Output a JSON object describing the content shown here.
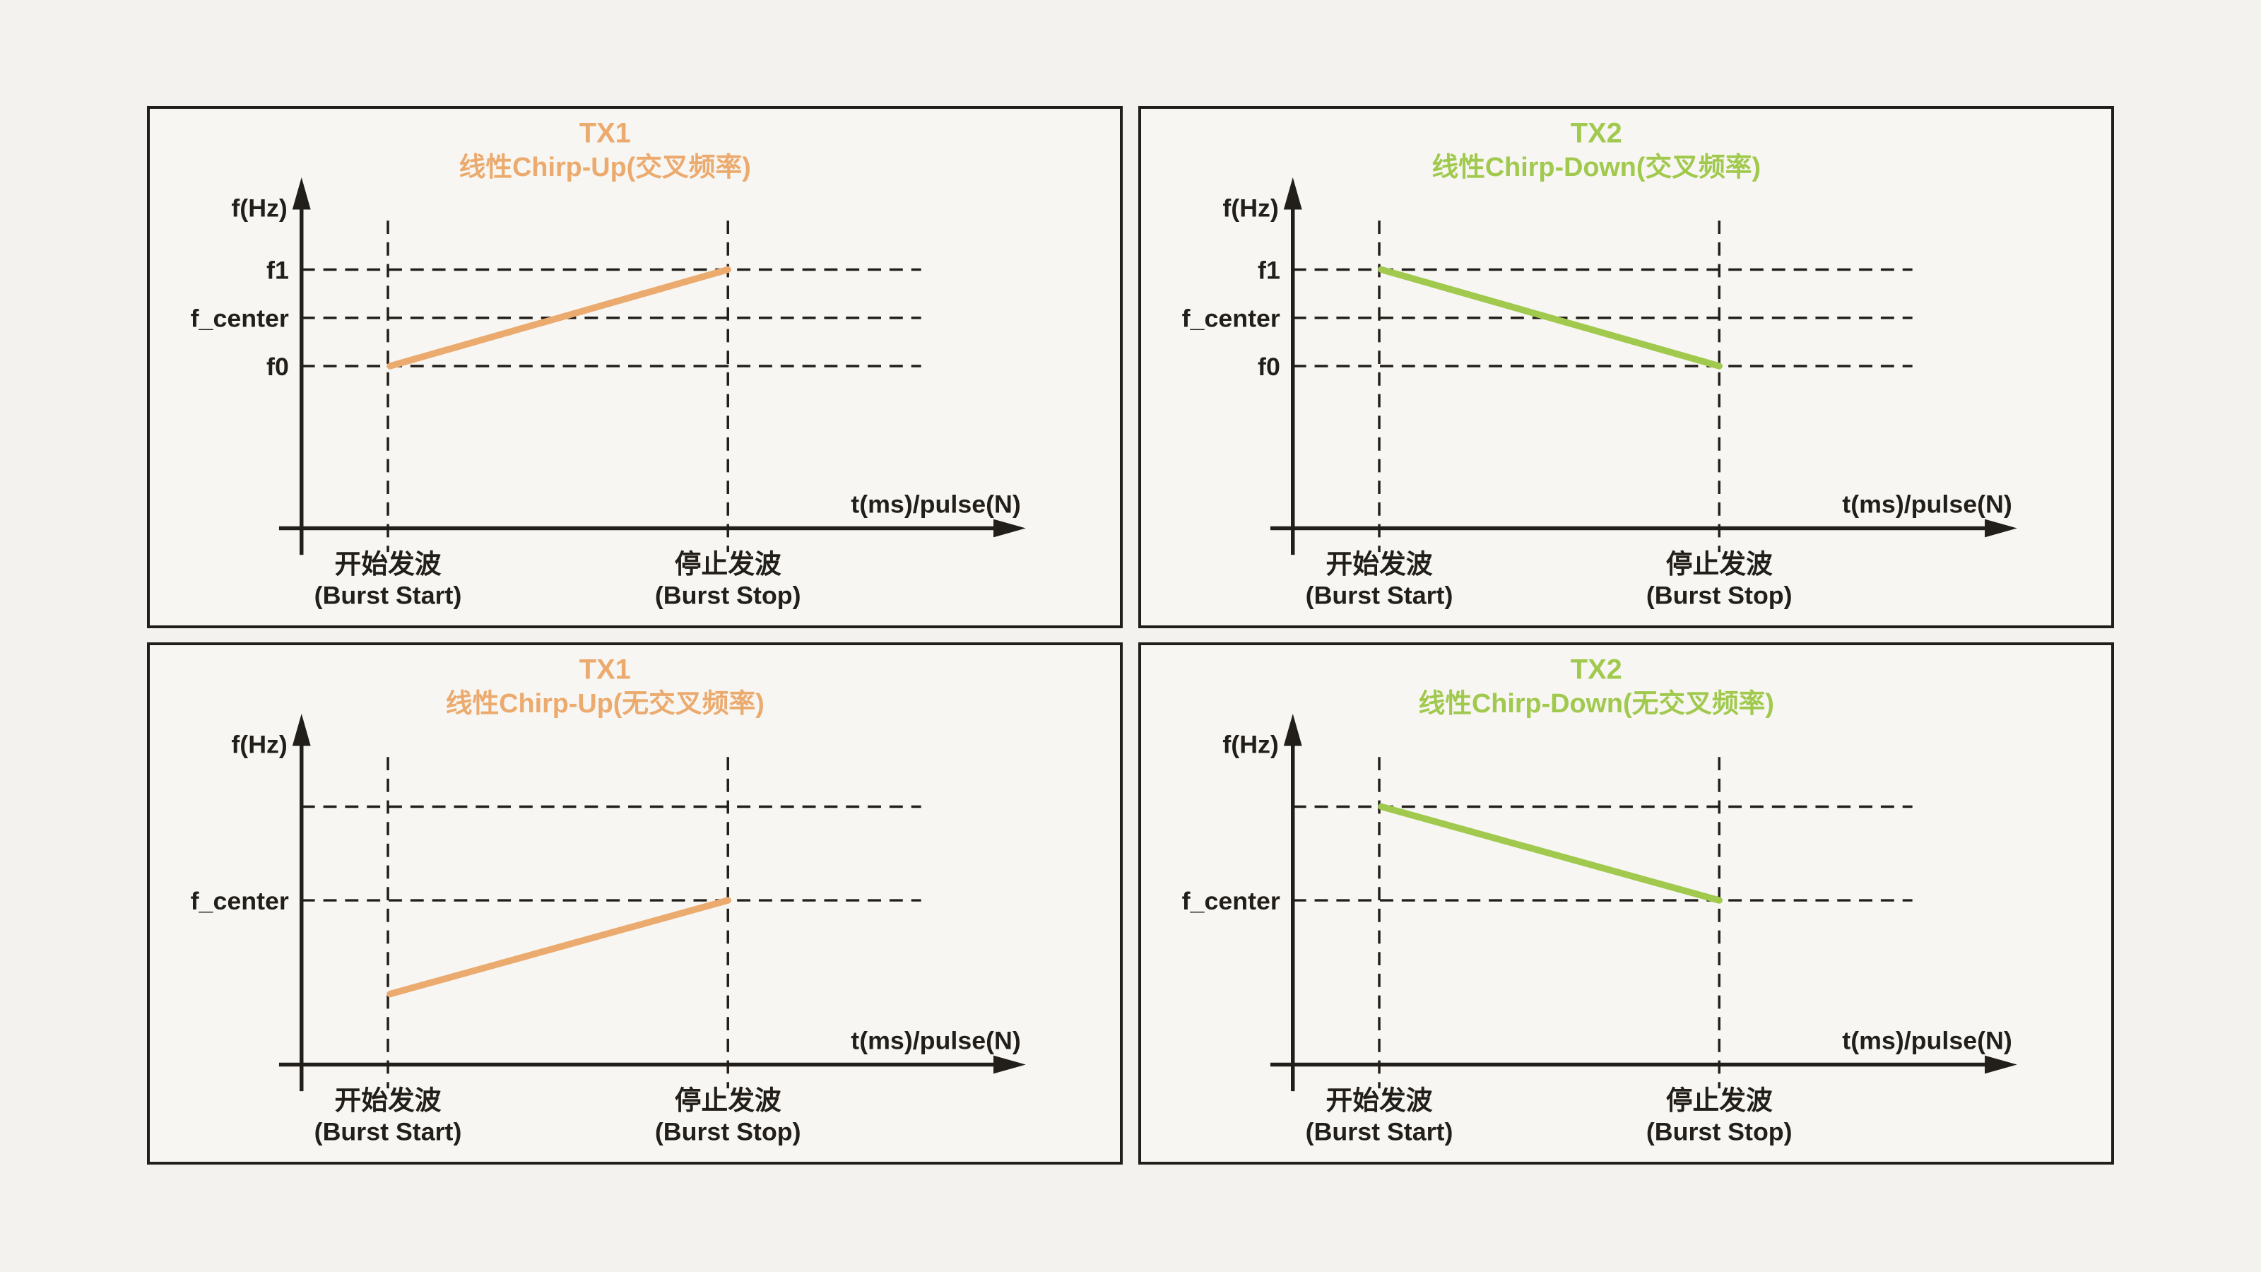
{
  "page": {
    "background_color": "#f4f2ee",
    "panel_background_color": "#f8f6f2",
    "ink_color": "#221f1a"
  },
  "panels": [
    {
      "name": "tx1-chirp-up-crossed",
      "title_line1": "TX1",
      "title_line2": "线性Chirp-Up(交叉频率)",
      "accent_color": "#ebaa6e",
      "row": 0,
      "y_axis_label": "f(Hz)",
      "x_axis_label": "t(ms)/pulse(N)",
      "x_tick_labels": [
        {
          "zh": "开始发波",
          "en": "(Burst Start)"
        },
        {
          "zh": "停止发波",
          "en": "(Burst Stop)"
        }
      ],
      "freq_gridlines": [
        {
          "label": "f1",
          "value": 1
        },
        {
          "label": "f_center",
          "value": 0.5
        },
        {
          "label": "f0",
          "value": 0
        }
      ],
      "chirp": {
        "direction": "up",
        "start_value": 0,
        "stop_value": 1
      }
    },
    {
      "name": "tx2-chirp-down-crossed",
      "title_line1": "TX2",
      "title_line2": "线性Chirp-Down(交叉频率)",
      "accent_color": "#a0c94e",
      "row": 0,
      "y_axis_label": "f(Hz)",
      "x_axis_label": "t(ms)/pulse(N)",
      "x_tick_labels": [
        {
          "zh": "开始发波",
          "en": "(Burst Start)"
        },
        {
          "zh": "停止发波",
          "en": "(Burst Stop)"
        }
      ],
      "freq_gridlines": [
        {
          "label": "f1",
          "value": 1
        },
        {
          "label": "f_center",
          "value": 0.5
        },
        {
          "label": "f0",
          "value": 0
        }
      ],
      "chirp": {
        "direction": "down",
        "start_value": 1,
        "stop_value": 0
      }
    },
    {
      "name": "tx1-chirp-up-uncrossed",
      "title_line1": "TX1",
      "title_line2": "线性Chirp-Up(无交叉频率)",
      "accent_color": "#ebaa6e",
      "row": 1,
      "y_axis_label": "f(Hz)",
      "x_axis_label": "t(ms)/pulse(N)",
      "x_tick_labels": [
        {
          "zh": "开始发波",
          "en": "(Burst Start)"
        },
        {
          "zh": "停止发波",
          "en": "(Burst Stop)"
        }
      ],
      "freq_gridlines": [
        {
          "label": "",
          "value": 1
        },
        {
          "label": "f_center",
          "value": 0.5
        }
      ],
      "chirp": {
        "direction": "up",
        "start_value": 0,
        "stop_value": 0.5
      }
    },
    {
      "name": "tx2-chirp-down-uncrossed",
      "title_line1": "TX2",
      "title_line2": "线性Chirp-Down(无交叉频率)",
      "accent_color": "#a0c94e",
      "row": 1,
      "y_axis_label": "f(Hz)",
      "x_axis_label": "t(ms)/pulse(N)",
      "x_tick_labels": [
        {
          "zh": "开始发波",
          "en": "(Burst Start)"
        },
        {
          "zh": "停止发波",
          "en": "(Burst Stop)"
        }
      ],
      "freq_gridlines": [
        {
          "label": "",
          "value": 1
        },
        {
          "label": "f_center",
          "value": 0.5
        }
      ],
      "chirp": {
        "direction": "down",
        "start_value": 1,
        "stop_value": 0.5
      }
    }
  ]
}
